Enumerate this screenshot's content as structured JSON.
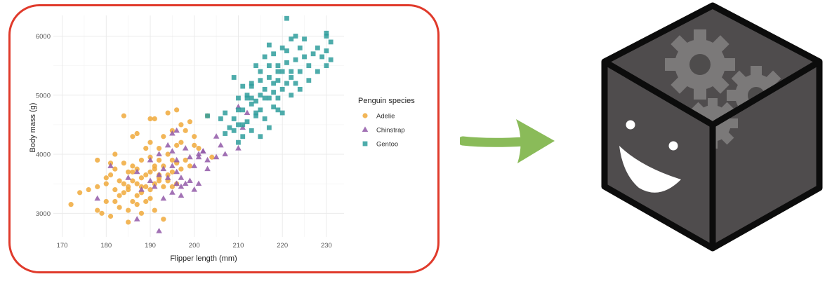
{
  "chart_data": {
    "type": "scatter",
    "title": "",
    "xlabel": "Flipper length (mm)",
    "ylabel": "Body mass (g)",
    "xlim": [
      168,
      234
    ],
    "ylim": [
      2600,
      6350
    ],
    "x_ticks": [
      170,
      180,
      190,
      200,
      210,
      220,
      230
    ],
    "y_ticks": [
      3000,
      4000,
      5000,
      6000
    ],
    "grid": true,
    "legend": {
      "title": "Penguin species",
      "position": "right"
    },
    "series": [
      {
        "name": "Adelie",
        "marker": "circle",
        "color": "#f0a93b",
        "points": [
          [
            172,
            3150
          ],
          [
            174,
            3350
          ],
          [
            176,
            3400
          ],
          [
            178,
            3450
          ],
          [
            178,
            3050
          ],
          [
            178,
            3900
          ],
          [
            179,
            3000
          ],
          [
            180,
            3200
          ],
          [
            180,
            3500
          ],
          [
            180,
            3600
          ],
          [
            181,
            2950
          ],
          [
            181,
            3850
          ],
          [
            181,
            3650
          ],
          [
            182,
            3400
          ],
          [
            182,
            3750
          ],
          [
            182,
            3200
          ],
          [
            183,
            3550
          ],
          [
            183,
            3100
          ],
          [
            183,
            3300
          ],
          [
            184,
            3350
          ],
          [
            184,
            3500
          ],
          [
            184,
            3850
          ],
          [
            184,
            4650
          ],
          [
            185,
            3700
          ],
          [
            185,
            3400
          ],
          [
            185,
            3450
          ],
          [
            185,
            3050
          ],
          [
            185,
            2850
          ],
          [
            186,
            3800
          ],
          [
            186,
            3200
          ],
          [
            186,
            3550
          ],
          [
            186,
            4300
          ],
          [
            187,
            3500
          ],
          [
            187,
            3750
          ],
          [
            187,
            3150
          ],
          [
            187,
            3300
          ],
          [
            188,
            3350
          ],
          [
            188,
            3600
          ],
          [
            188,
            3900
          ],
          [
            188,
            3000
          ],
          [
            189,
            3650
          ],
          [
            189,
            3450
          ],
          [
            189,
            4100
          ],
          [
            189,
            3200
          ],
          [
            190,
            3700
          ],
          [
            190,
            3400
          ],
          [
            190,
            3950
          ],
          [
            190,
            4200
          ],
          [
            190,
            3250
          ],
          [
            190,
            4600
          ],
          [
            191,
            3750
          ],
          [
            191,
            3500
          ],
          [
            191,
            3800
          ],
          [
            191,
            3050
          ],
          [
            192,
            4100
          ],
          [
            192,
            3600
          ],
          [
            192,
            3550
          ],
          [
            192,
            3900
          ],
          [
            193,
            3450
          ],
          [
            193,
            4300
          ],
          [
            193,
            3800
          ],
          [
            193,
            2900
          ],
          [
            194,
            3650
          ],
          [
            194,
            4000
          ],
          [
            195,
            3900
          ],
          [
            195,
            3450
          ],
          [
            195,
            4400
          ],
          [
            195,
            3700
          ],
          [
            196,
            4150
          ],
          [
            196,
            3500
          ],
          [
            196,
            4750
          ],
          [
            197,
            4200
          ],
          [
            197,
            3750
          ],
          [
            197,
            4500
          ],
          [
            198,
            3900
          ],
          [
            198,
            4400
          ],
          [
            199,
            3800
          ],
          [
            200,
            4150
          ],
          [
            200,
            4300
          ],
          [
            201,
            4100
          ],
          [
            203,
            4650
          ],
          [
            204,
            3950
          ],
          [
            182,
            4000
          ],
          [
            186,
            3700
          ],
          [
            188,
            3450
          ],
          [
            192,
            3650
          ],
          [
            194,
            3550
          ],
          [
            196,
            3850
          ],
          [
            187,
            4350
          ],
          [
            191,
            4600
          ],
          [
            194,
            4700
          ],
          [
            199,
            4550
          ]
        ]
      },
      {
        "name": "Chinstrap",
        "marker": "triangle",
        "color": "#9259a8",
        "points": [
          [
            178,
            3250
          ],
          [
            181,
            3800
          ],
          [
            187,
            3700
          ],
          [
            187,
            2900
          ],
          [
            188,
            3400
          ],
          [
            190,
            3550
          ],
          [
            191,
            3450
          ],
          [
            192,
            3650
          ],
          [
            192,
            2700
          ],
          [
            193,
            3250
          ],
          [
            193,
            3750
          ],
          [
            194,
            3600
          ],
          [
            195,
            3350
          ],
          [
            195,
            3800
          ],
          [
            195,
            4050
          ],
          [
            195,
            4350
          ],
          [
            196,
            3700
          ],
          [
            196,
            3500
          ],
          [
            196,
            3900
          ],
          [
            197,
            3600
          ],
          [
            197,
            3450
          ],
          [
            197,
            3300
          ],
          [
            198,
            4100
          ],
          [
            198,
            3500
          ],
          [
            199,
            3550
          ],
          [
            199,
            3950
          ],
          [
            200,
            3400
          ],
          [
            200,
            3800
          ],
          [
            201,
            3500
          ],
          [
            201,
            4000
          ],
          [
            201,
            3950
          ],
          [
            202,
            4050
          ],
          [
            203,
            3750
          ],
          [
            205,
            4300
          ],
          [
            205,
            3950
          ],
          [
            206,
            4150
          ],
          [
            207,
            4000
          ],
          [
            210,
            4100
          ],
          [
            210,
            4800
          ],
          [
            211,
            4450
          ],
          [
            212,
            4700
          ],
          [
            194,
            4150
          ],
          [
            192,
            4000
          ],
          [
            190,
            3900
          ],
          [
            185,
            3600
          ],
          [
            196,
            4400
          ],
          [
            202,
            4050
          ],
          [
            203,
            3900
          ]
        ]
      },
      {
        "name": "Gentoo",
        "marker": "square",
        "color": "#2f9e9c",
        "points": [
          [
            203,
            4650
          ],
          [
            207,
            4350
          ],
          [
            208,
            4450
          ],
          [
            209,
            4600
          ],
          [
            209,
            4400
          ],
          [
            210,
            4200
          ],
          [
            210,
            4950
          ],
          [
            210,
            4500
          ],
          [
            211,
            4750
          ],
          [
            211,
            4300
          ],
          [
            212,
            5000
          ],
          [
            212,
            4550
          ],
          [
            213,
            4850
          ],
          [
            213,
            4400
          ],
          [
            213,
            5200
          ],
          [
            214,
            4900
          ],
          [
            214,
            4700
          ],
          [
            214,
            5500
          ],
          [
            215,
            4750
          ],
          [
            215,
            5000
          ],
          [
            215,
            5400
          ],
          [
            215,
            4300
          ],
          [
            216,
            5100
          ],
          [
            216,
            4600
          ],
          [
            216,
            5650
          ],
          [
            217,
            4950
          ],
          [
            217,
            5300
          ],
          [
            217,
            4450
          ],
          [
            218,
            5200
          ],
          [
            218,
            5700
          ],
          [
            218,
            4800
          ],
          [
            219,
            5250
          ],
          [
            219,
            5500
          ],
          [
            219,
            4950
          ],
          [
            220,
            5400
          ],
          [
            220,
            5800
          ],
          [
            220,
            5100
          ],
          [
            220,
            4700
          ],
          [
            221,
            5550
          ],
          [
            221,
            6300
          ],
          [
            221,
            5200
          ],
          [
            221,
            5750
          ],
          [
            222,
            5400
          ],
          [
            222,
            5000
          ],
          [
            222,
            5950
          ],
          [
            223,
            5600
          ],
          [
            223,
            5200
          ],
          [
            224,
            5800
          ],
          [
            224,
            5400
          ],
          [
            225,
            5650
          ],
          [
            225,
            5950
          ],
          [
            226,
            5500
          ],
          [
            228,
            5800
          ],
          [
            228,
            5400
          ],
          [
            229,
            5650
          ],
          [
            230,
            6000
          ],
          [
            230,
            5750
          ],
          [
            230,
            5500
          ],
          [
            231,
            5600
          ],
          [
            231,
            5900
          ],
          [
            230,
            6050
          ],
          [
            212,
            4950
          ],
          [
            213,
            5150
          ],
          [
            216,
            4950
          ],
          [
            218,
            5050
          ],
          [
            219,
            5400
          ],
          [
            222,
            5300
          ],
          [
            210,
            4750
          ],
          [
            211,
            5150
          ],
          [
            215,
            5250
          ],
          [
            217,
            5500
          ],
          [
            224,
            5100
          ],
          [
            226,
            5250
          ],
          [
            227,
            5700
          ],
          [
            211,
            4500
          ],
          [
            214,
            4650
          ],
          [
            219,
            4750
          ],
          [
            206,
            4600
          ],
          [
            207,
            4700
          ],
          [
            209,
            5300
          ],
          [
            213,
            4950
          ],
          [
            217,
            5850
          ],
          [
            223,
            6000
          ]
        ]
      }
    ]
  },
  "icons": {
    "arrow": "right-arrow-icon",
    "cube": "smiling-cube-with-gears-icon"
  },
  "colors": {
    "frame_border": "#e03a2b",
    "arrow": "#8abb59",
    "cube_fill": "#4f4c4d",
    "gear": "#7a7778"
  }
}
